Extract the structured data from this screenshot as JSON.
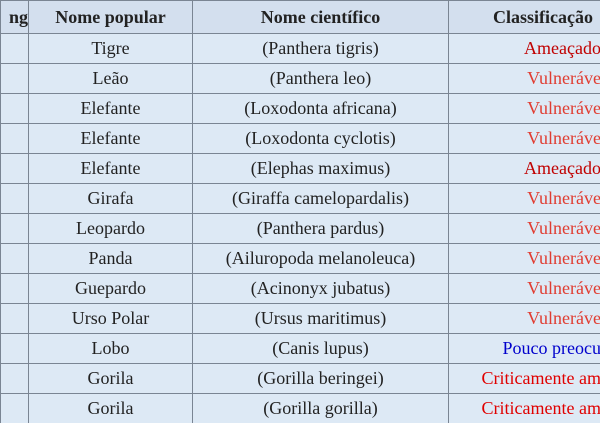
{
  "table": {
    "header": [
      "ng",
      "Nome popular",
      "Nome científico",
      "Classificação"
    ],
    "rows": [
      {
        "popular": "Tigre",
        "scientific": "(Panthera tigris)",
        "status": "Ameaçado",
        "color": "#c00000"
      },
      {
        "popular": "Leão",
        "scientific": "(Panthera leo)",
        "status": "Vulneráve",
        "color": "#e03c31"
      },
      {
        "popular": "Elefante",
        "scientific": "(Loxodonta africana)",
        "status": "Vulneráve",
        "color": "#e03c31"
      },
      {
        "popular": "Elefante",
        "scientific": "(Loxodonta cyclotis)",
        "status": "Vulneráve",
        "color": "#e03c31"
      },
      {
        "popular": "Elefante",
        "scientific": "(Elephas maximus)",
        "status": "Ameaçado",
        "color": "#c00000"
      },
      {
        "popular": "Girafa",
        "scientific": "(Giraffa camelopardalis)",
        "status": "Vulneráve",
        "color": "#e03c31"
      },
      {
        "popular": "Leopardo",
        "scientific": "(Panthera pardus)",
        "status": "Vulneráve",
        "color": "#e03c31"
      },
      {
        "popular": "Panda",
        "scientific": "(Ailuropoda melanoleuca)",
        "status": "Vulneráve",
        "color": "#e03c31"
      },
      {
        "popular": "Guepardo",
        "scientific": "(Acinonyx jubatus)",
        "status": "Vulneráve",
        "color": "#e03c31"
      },
      {
        "popular": "Urso Polar",
        "scientific": "(Ursus maritimus)",
        "status": "Vulneráve",
        "color": "#e03c31"
      },
      {
        "popular": "Lobo",
        "scientific": "(Canis lupus)",
        "status": "Pouco preocu",
        "color": "#0000cc"
      },
      {
        "popular": "Gorila",
        "scientific": "(Gorilla beringei)",
        "status": "Criticamente am",
        "color": "#e00000"
      },
      {
        "popular": "Gorila",
        "scientific": "(Gorilla gorilla)",
        "status": "Criticamente am",
        "color": "#e00000"
      }
    ]
  }
}
